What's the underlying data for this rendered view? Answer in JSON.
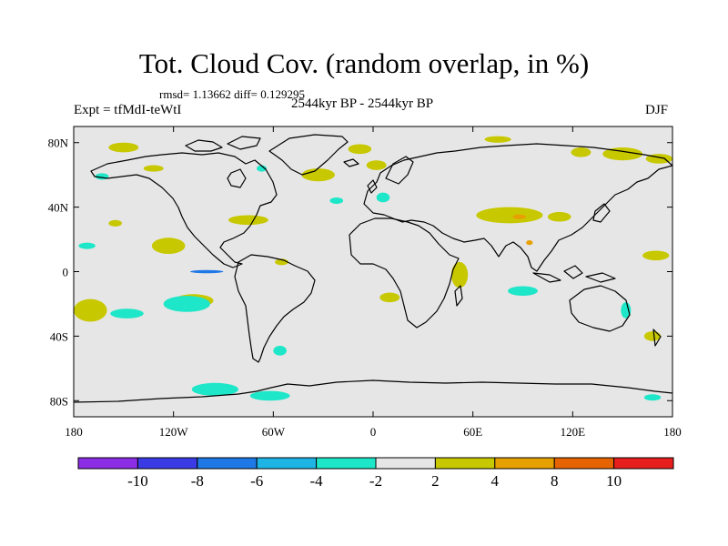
{
  "header": {
    "title": "Tot. Cloud Cov. (random overlap, in %)",
    "stats": "rmsd= 1.13662 diff= 0.129295",
    "experiment": "Expt = tfMdI-teWtI",
    "period": "2544kyr BP - 2544kyr BP",
    "season": "DJF"
  },
  "map": {
    "background_color": "#e6e6e6",
    "coast_color": "#000000",
    "x_ticks": [
      {
        "lon": -180,
        "label": "180"
      },
      {
        "lon": -120,
        "label": "120W"
      },
      {
        "lon": -60,
        "label": "60W"
      },
      {
        "lon": 0,
        "label": "0"
      },
      {
        "lon": 60,
        "label": "60E"
      },
      {
        "lon": 120,
        "label": "120E"
      },
      {
        "lon": 180,
        "label": "180"
      }
    ],
    "y_ticks": [
      {
        "lat": 80,
        "label": "80N"
      },
      {
        "lat": 40,
        "label": "40N"
      },
      {
        "lat": 0,
        "label": "0"
      },
      {
        "lat": -40,
        "label": "40S"
      },
      {
        "lat": -80,
        "label": "80S"
      }
    ]
  },
  "colorbar": {
    "colors": [
      "#8c2de6",
      "#3b3be6",
      "#1e78e6",
      "#1eb4e6",
      "#1ee6c8",
      "#e6e6e6",
      "#c8c800",
      "#e6a000",
      "#e66400",
      "#e61e1e"
    ],
    "labels": [
      "-10",
      "-8",
      "-6",
      "-4",
      "-2",
      "2",
      "4",
      "8",
      "10"
    ]
  },
  "anomalies": [
    {
      "color": "#c8c800",
      "lon": -150,
      "lat": 77,
      "rx": 9,
      "ry": 3
    },
    {
      "color": "#c8c800",
      "lon": -8,
      "lat": 76,
      "rx": 7,
      "ry": 3
    },
    {
      "color": "#c8c800",
      "lon": 75,
      "lat": 82,
      "rx": 8,
      "ry": 2
    },
    {
      "color": "#c8c800",
      "lon": 125,
      "lat": 74,
      "rx": 6,
      "ry": 3
    },
    {
      "color": "#c8c800",
      "lon": 150,
      "lat": 73,
      "rx": 12,
      "ry": 4
    },
    {
      "color": "#c8c800",
      "lon": 172,
      "lat": 70,
      "rx": 8,
      "ry": 3
    },
    {
      "color": "#c8c800",
      "lon": -33,
      "lat": 60,
      "rx": 10,
      "ry": 4
    },
    {
      "color": "#c8c800",
      "lon": 2,
      "lat": 66,
      "rx": 6,
      "ry": 3
    },
    {
      "color": "#c8c800",
      "lon": -132,
      "lat": 64,
      "rx": 6,
      "ry": 2
    },
    {
      "color": "#c8c800",
      "lon": 82,
      "lat": 35,
      "rx": 20,
      "ry": 5
    },
    {
      "color": "#c8c800",
      "lon": 112,
      "lat": 34,
      "rx": 7,
      "ry": 3
    },
    {
      "color": "#c8c800",
      "lon": -75,
      "lat": 32,
      "rx": 12,
      "ry": 3
    },
    {
      "color": "#c8c800",
      "lon": -123,
      "lat": 16,
      "rx": 10,
      "ry": 5
    },
    {
      "color": "#c8c800",
      "lon": -155,
      "lat": 30,
      "rx": 4,
      "ry": 2
    },
    {
      "color": "#c8c800",
      "lon": 52,
      "lat": -2,
      "rx": 5,
      "ry": 8
    },
    {
      "color": "#c8c800",
      "lon": 170,
      "lat": 10,
      "rx": 8,
      "ry": 3
    },
    {
      "color": "#c8c800",
      "lon": -170,
      "lat": -24,
      "rx": 10,
      "ry": 7
    },
    {
      "color": "#c8c800",
      "lon": -108,
      "lat": -18,
      "rx": 12,
      "ry": 4
    },
    {
      "color": "#c8c800",
      "lon": 10,
      "lat": -16,
      "rx": 6,
      "ry": 3
    },
    {
      "color": "#c8c800",
      "lon": -55,
      "lat": 6,
      "rx": 4,
      "ry": 2
    },
    {
      "color": "#c8c800",
      "lon": 168,
      "lat": -40,
      "rx": 5,
      "ry": 3
    },
    {
      "color": "#e6a000",
      "lon": 88,
      "lat": 34,
      "rx": 4,
      "ry": 1.5
    },
    {
      "color": "#e6a000",
      "lon": 94,
      "lat": 18,
      "rx": 2,
      "ry": 1.5
    },
    {
      "color": "#1ee6c8",
      "lon": -163,
      "lat": 59,
      "rx": 4,
      "ry": 2
    },
    {
      "color": "#1ee6c8",
      "lon": -67,
      "lat": 64,
      "rx": 3,
      "ry": 2
    },
    {
      "color": "#1ee6c8",
      "lon": 6,
      "lat": 46,
      "rx": 4,
      "ry": 3
    },
    {
      "color": "#1ee6c8",
      "lon": -22,
      "lat": 44,
      "rx": 4,
      "ry": 2
    },
    {
      "color": "#1ee6c8",
      "lon": -172,
      "lat": 16,
      "rx": 5,
      "ry": 2
    },
    {
      "color": "#1ee6c8",
      "lon": -112,
      "lat": -20,
      "rx": 14,
      "ry": 5
    },
    {
      "color": "#1ee6c8",
      "lon": -148,
      "lat": -26,
      "rx": 10,
      "ry": 3
    },
    {
      "color": "#1ee6c8",
      "lon": 90,
      "lat": -12,
      "rx": 9,
      "ry": 3
    },
    {
      "color": "#1ee6c8",
      "lon": 152,
      "lat": -24,
      "rx": 3,
      "ry": 5
    },
    {
      "color": "#1ee6c8",
      "lon": -56,
      "lat": -49,
      "rx": 4,
      "ry": 3
    },
    {
      "color": "#1ee6c8",
      "lon": -95,
      "lat": -73,
      "rx": 14,
      "ry": 4
    },
    {
      "color": "#1ee6c8",
      "lon": -62,
      "lat": -77,
      "rx": 12,
      "ry": 3
    },
    {
      "color": "#1ee6c8",
      "lon": 168,
      "lat": -78,
      "rx": 5,
      "ry": 2
    },
    {
      "color": "#1e78e6",
      "lon": -100,
      "lat": 0,
      "rx": 10,
      "ry": 1
    }
  ]
}
